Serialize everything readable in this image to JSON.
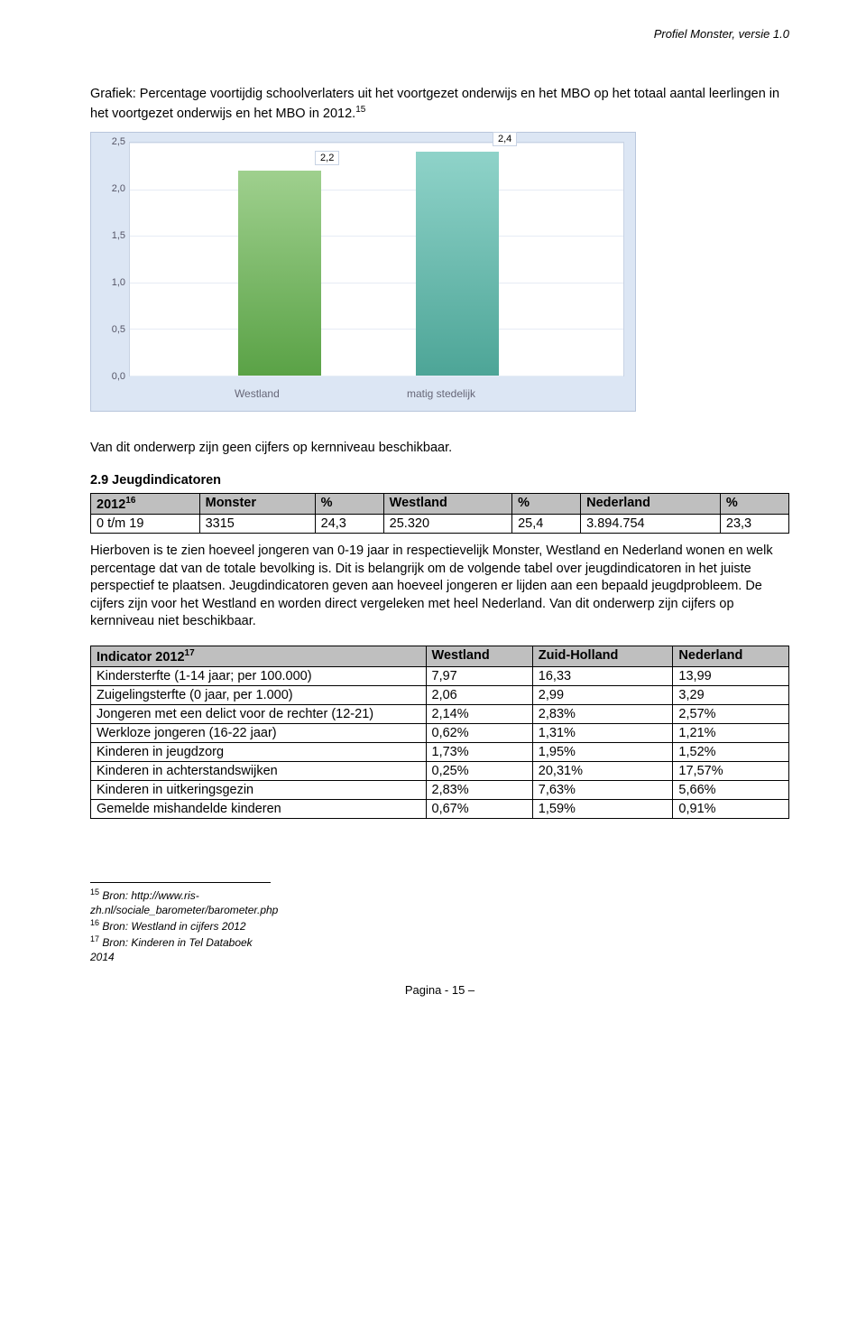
{
  "header": {
    "right": "Profiel Monster, versie 1.0"
  },
  "intro": {
    "text": "Grafiek: Percentage voortijdig schoolverlaters uit het voortgezet onderwijs en het MBO op het totaal aantal leerlingen in het voortgezet onderwijs en het MBO in 2012.",
    "sup": "15"
  },
  "chart": {
    "type": "bar",
    "ylim": [
      0,
      2.5
    ],
    "ytick_step": 0.5,
    "yticks": [
      "0,0",
      "0,5",
      "1,0",
      "1,5",
      "2,0",
      "2,5"
    ],
    "background_color": "#dce6f4",
    "plot_bg": "#ffffff",
    "grid_color": "#e6ecf5",
    "border_color": "#c8d3e4",
    "bars": [
      {
        "category": "Westland",
        "value": 2.2,
        "label": "2,2",
        "fill_top": "#9fd08e",
        "fill_bottom": "#5aa246",
        "x_pct": 22
      },
      {
        "category": "matig stedelijk",
        "value": 2.4,
        "label": "2,4",
        "fill_top": "#8fd3c9",
        "fill_bottom": "#4da597",
        "x_pct": 58
      }
    ]
  },
  "between_text": "Van dit onderwerp zijn geen cijfers op kernniveau beschikbaar.",
  "section_head": "2.9   Jeugdindicatoren",
  "table1": {
    "columns": [
      "2012",
      "Monster",
      "%",
      "Westland",
      "%",
      "Nederland",
      "%"
    ],
    "header_sup": "16",
    "row": [
      "0 t/m 19",
      "3315",
      "24,3",
      "25.320",
      "25,4",
      "3.894.754",
      "23,3"
    ]
  },
  "body_text": "Hierboven is te zien hoeveel jongeren van 0-19 jaar in respectievelijk Monster, Westland en Nederland wonen en welk percentage dat van de totale bevolking is. Dit is belangrijk om de volgende tabel over jeugdindicatoren in het juiste perspectief te plaatsen. Jeugdindicatoren geven aan hoeveel jongeren er lijden aan een bepaald jeugdprobleem. De cijfers zijn voor het Westland en worden direct vergeleken met heel Nederland. Van dit onderwerp zijn cijfers op kernniveau niet beschikbaar.",
  "table2": {
    "header": [
      "Indicator 2012",
      "Westland",
      "Zuid-Holland",
      "Nederland"
    ],
    "header_sup": "17",
    "rows": [
      [
        "Kindersterfte (1-14 jaar; per 100.000)",
        "7,97",
        "16,33",
        "13,99"
      ],
      [
        "Zuigelingsterfte (0 jaar, per 1.000)",
        "2,06",
        "2,99",
        "3,29"
      ],
      [
        "Jongeren met een delict voor de rechter (12-21)",
        "2,14%",
        "2,83%",
        "2,57%"
      ],
      [
        "Werkloze jongeren (16-22 jaar)",
        "0,62%",
        "1,31%",
        "1,21%"
      ],
      [
        "Kinderen in jeugdzorg",
        "1,73%",
        "1,95%",
        "1,52%"
      ],
      [
        "Kinderen in achterstandswijken",
        "0,25%",
        "20,31%",
        "17,57%"
      ],
      [
        "Kinderen in uitkeringsgezin",
        "2,83%",
        "7,63%",
        "5,66%"
      ],
      [
        "Gemelde mishandelde kinderen",
        "0,67%",
        "1,59%",
        "0,91%"
      ]
    ]
  },
  "footnotes": [
    {
      "num": "15",
      "text": "Bron: http://www.ris-zh.nl/sociale_barometer/barometer.php"
    },
    {
      "num": "16",
      "text": "Bron: Westland in cijfers 2012"
    },
    {
      "num": "17",
      "text": "Bron: Kinderen in Tel Databoek 2014"
    }
  ],
  "footer": "Pagina - 15 –"
}
